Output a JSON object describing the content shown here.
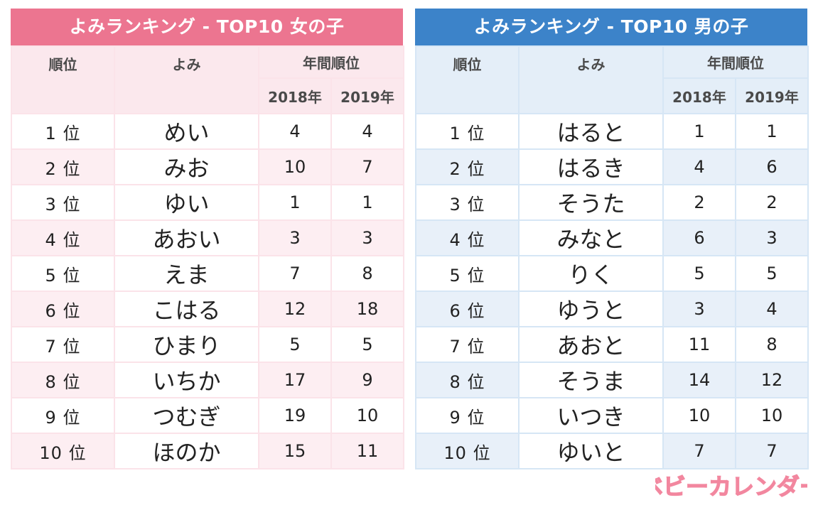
{
  "girls": {
    "title": "よみランキング - TOP10 女の子",
    "headers": {
      "rank": "順位",
      "name": "よみ",
      "annual": "年間順位",
      "y2018": "2018年",
      "y2019": "2019年"
    },
    "rows": [
      {
        "rank": "1 位",
        "name": "めい",
        "y2018": "4",
        "y2019": "4"
      },
      {
        "rank": "2 位",
        "name": "みお",
        "y2018": "10",
        "y2019": "7"
      },
      {
        "rank": "3 位",
        "name": "ゆい",
        "y2018": "1",
        "y2019": "1"
      },
      {
        "rank": "4 位",
        "name": "あおい",
        "y2018": "3",
        "y2019": "3"
      },
      {
        "rank": "5 位",
        "name": "えま",
        "y2018": "7",
        "y2019": "8"
      },
      {
        "rank": "6 位",
        "name": "こはる",
        "y2018": "12",
        "y2019": "18"
      },
      {
        "rank": "7 位",
        "name": "ひまり",
        "y2018": "5",
        "y2019": "5"
      },
      {
        "rank": "8 位",
        "name": "いちか",
        "y2018": "17",
        "y2019": "9"
      },
      {
        "rank": "9 位",
        "name": "つむぎ",
        "y2018": "19",
        "y2019": "10"
      },
      {
        "rank": "10 位",
        "name": "ほのか",
        "y2018": "15",
        "y2019": "11"
      }
    ]
  },
  "boys": {
    "title": "よみランキング - TOP10 男の子",
    "headers": {
      "rank": "順位",
      "name": "よみ",
      "annual": "年間順位",
      "y2018": "2018年",
      "y2019": "2019年"
    },
    "rows": [
      {
        "rank": "1 位",
        "name": "はると",
        "y2018": "1",
        "y2019": "1"
      },
      {
        "rank": "2 位",
        "name": "はるき",
        "y2018": "4",
        "y2019": "6"
      },
      {
        "rank": "3 位",
        "name": "そうた",
        "y2018": "2",
        "y2019": "2"
      },
      {
        "rank": "4 位",
        "name": "みなと",
        "y2018": "6",
        "y2019": "3"
      },
      {
        "rank": "5 位",
        "name": "りく",
        "y2018": "5",
        "y2019": "5"
      },
      {
        "rank": "6 位",
        "name": "ゆうと",
        "y2018": "3",
        "y2019": "4"
      },
      {
        "rank": "7 位",
        "name": "あおと",
        "y2018": "11",
        "y2019": "8"
      },
      {
        "rank": "8 位",
        "name": "そうま",
        "y2018": "14",
        "y2019": "12"
      },
      {
        "rank": "9 位",
        "name": "いつき",
        "y2018": "10",
        "y2019": "10"
      },
      {
        "rank": "10 位",
        "name": "ゆいと",
        "y2018": "7",
        "y2019": "7"
      }
    ]
  },
  "logo": {
    "text": "ベビーカレンダー",
    "color": "#f2879f"
  },
  "colors": {
    "girls_accent": "#ec7590",
    "boys_accent": "#3c83c9"
  }
}
